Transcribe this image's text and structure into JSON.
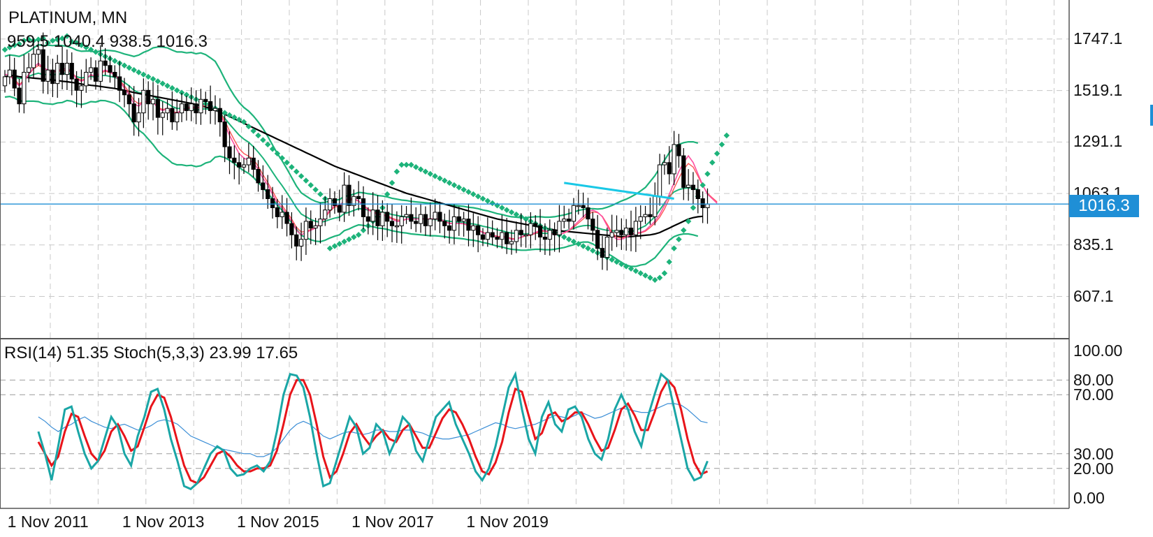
{
  "header": {
    "symbol": "PLATINUM, MN",
    "ohlc": "959.5 1040.4 938.5 1016.3",
    "indicators": "RSI(14) 51.35 Stoch(5,3,3) 23.99 17.65"
  },
  "colors": {
    "grid": "#c8c8c8",
    "bollinger": "#1db37a",
    "sar": "#1db37a",
    "ma_long": "#000000",
    "ma_fast": "#ff4fa0",
    "ma_mid": "#ff5555",
    "trend": "#19c8e6",
    "price_line": "#1f8fd6",
    "stoch_main": "#1aa6a6",
    "stoch_signal": "#e8141a",
    "rsi": "#3b8ed6"
  },
  "chart_data": {
    "type": "candlestick",
    "title": "PLATINUM, MN",
    "current_price_label": "1016.3",
    "price_axis_ticks": [
      "1747.1",
      "1519.1",
      "1291.1",
      "1063.1",
      "835.1",
      "607.1"
    ],
    "price_axis_values": [
      1747.1,
      1519.1,
      1291.1,
      1063.1,
      835.1,
      607.1
    ],
    "price_ylim": [
      420,
      1920
    ],
    "current_price": 1016.3,
    "oscillator_ticks": [
      "100.00",
      "80.00",
      "70.00",
      "30.00",
      "20.00",
      "0.00"
    ],
    "oscillator_values": [
      100,
      80,
      70,
      30,
      20,
      0
    ],
    "date_labels": [
      "1 Nov 2011",
      "1 Nov 2013",
      "1 Nov 2015",
      "1 Nov 2017",
      "1 Nov 2019"
    ],
    "date_label_months": [
      2,
      26,
      50,
      74,
      98
    ],
    "closes": [
      1580,
      1610,
      1530,
      1460,
      1600,
      1620,
      1680,
      1700,
      1560,
      1610,
      1550,
      1640,
      1590,
      1640,
      1570,
      1520,
      1540,
      1600,
      1620,
      1560,
      1650,
      1630,
      1600,
      1580,
      1520,
      1500,
      1460,
      1380,
      1420,
      1520,
      1460,
      1480,
      1400,
      1420,
      1440,
      1380,
      1420,
      1460,
      1430,
      1460,
      1420,
      1480,
      1470,
      1430,
      1440,
      1380,
      1270,
      1220,
      1200,
      1180,
      1190,
      1220,
      1170,
      1110,
      1080,
      1040,
      1000,
      960,
      980,
      930,
      880,
      830,
      860,
      940,
      910,
      920,
      950,
      990,
      1040,
      1010,
      980,
      1100,
      1010,
      1050,
      1040,
      960,
      940,
      990,
      920,
      980,
      940,
      920,
      920,
      960,
      970,
      940,
      930,
      970,
      920,
      950,
      980,
      940,
      920,
      900,
      960,
      940,
      950,
      900,
      920,
      880,
      860,
      890,
      870,
      860,
      890,
      840,
      850,
      900,
      880,
      880,
      930,
      920,
      870,
      860,
      900,
      880,
      940,
      950,
      940,
      1010,
      1010,
      1000,
      950,
      900,
      820,
      780,
      870,
      890,
      900,
      880,
      910,
      880,
      940,
      960,
      970,
      960,
      1050,
      1190,
      1200,
      1150,
      1280,
      1230,
      1090,
      1100,
      1080,
      1040,
      1000,
      1016.3
    ],
    "middle_band": [
      1580,
      1585,
      1580,
      1572,
      1575,
      1582,
      1590,
      1596,
      1590,
      1590,
      1588,
      1592,
      1592,
      1595,
      1590,
      1580,
      1575,
      1578,
      1582,
      1578,
      1585,
      1586,
      1582,
      1578,
      1568,
      1555,
      1540,
      1520,
      1510,
      1508,
      1500,
      1494,
      1482,
      1472,
      1462,
      1448,
      1440,
      1440,
      1436,
      1438,
      1432,
      1436,
      1438,
      1434,
      1436,
      1420,
      1396,
      1370,
      1346,
      1322,
      1304,
      1290,
      1270,
      1246,
      1220,
      1190,
      1158,
      1126,
      1098,
      1066,
      1034,
      1000,
      972,
      960,
      948,
      940,
      936,
      940,
      948,
      954,
      958,
      974,
      980,
      988,
      996,
      994,
      990,
      988,
      982,
      980,
      976,
      970,
      966,
      962,
      960,
      956,
      954,
      952,
      950,
      948,
      948,
      946,
      944,
      940,
      938,
      936,
      934,
      930,
      928,
      924,
      918,
      914,
      908,
      902,
      898,
      892,
      888,
      886,
      884,
      884,
      886,
      888,
      888,
      886,
      886,
      888,
      892,
      896,
      902,
      908,
      916,
      920,
      922,
      918,
      910,
      904,
      900,
      898,
      896,
      894,
      892,
      894,
      900,
      910,
      920,
      940,
      960,
      990,
      1020,
      1050,
      1070,
      1080,
      1086,
      1088,
      1086,
      1080
    ],
    "band_width": [
      90,
      92,
      94,
      98,
      104,
      110,
      118,
      126,
      128,
      130,
      130,
      128,
      126,
      120,
      118,
      118,
      118,
      116,
      112,
      110,
      110,
      112,
      114,
      116,
      120,
      126,
      136,
      150,
      166,
      180,
      196,
      214,
      230,
      240,
      246,
      250,
      250,
      250,
      250,
      250,
      250,
      250,
      240,
      230,
      212,
      192,
      174,
      160,
      150,
      144,
      140,
      138,
      136,
      134,
      130,
      126,
      120,
      114,
      110,
      106,
      100,
      96,
      94,
      92,
      90,
      88,
      86,
      84,
      82,
      80,
      78,
      76,
      74,
      72,
      72,
      72,
      72,
      72,
      72,
      72,
      72,
      72,
      72,
      72,
      72,
      72,
      72,
      72,
      72,
      72,
      72,
      72,
      72,
      72,
      72,
      72,
      72,
      72,
      72,
      72,
      72,
      72,
      72,
      72,
      72,
      72,
      72,
      72,
      72,
      72,
      72,
      72,
      72,
      72,
      72,
      72,
      72,
      72,
      72,
      72,
      72,
      72,
      74,
      78,
      84,
      92,
      102,
      112,
      124,
      136,
      146,
      154,
      160,
      164,
      170,
      176,
      182,
      186,
      190,
      194,
      198,
      200,
      202,
      204,
      206,
      206,
      206,
      204
    ],
    "sar": [
      1700,
      1710,
      1720,
      1725,
      1740,
      1745,
      1740,
      1745,
      1750,
      1730,
      1740,
      1745,
      1750,
      1760,
      1735,
      1730,
      1720,
      1710,
      1700,
      1690,
      1680,
      1670,
      1660,
      1650,
      1640,
      1630,
      1620,
      1610,
      1600,
      1590,
      1580,
      1570,
      1560,
      1550,
      1540,
      1530,
      1520,
      1510,
      1500,
      1490,
      1480,
      1470,
      1460,
      1450,
      1440,
      1430,
      1420,
      1410,
      1400,
      1390,
      1380,
      1360,
      1340,
      1320,
      1300,
      1280,
      1260,
      1240,
      1220,
      1200,
      1180,
      1160,
      1140,
      1120,
      1100,
      1080,
      1060,
      1040,
      820,
      830,
      840,
      850,
      860,
      870,
      880,
      900,
      920,
      940,
      960,
      1000,
      1060,
      1110,
      1160,
      1190,
      1190,
      1190,
      1180,
      1170,
      1160,
      1150,
      1140,
      1130,
      1120,
      1110,
      1100,
      1090,
      1080,
      1070,
      1060,
      1050,
      1040,
      1030,
      1020,
      1010,
      1000,
      990,
      980,
      970,
      960,
      950,
      940,
      930,
      920,
      910,
      900,
      890,
      880,
      870,
      860,
      850,
      840,
      830,
      820,
      810,
      800,
      790,
      780,
      770,
      760,
      750,
      740,
      730,
      720,
      710,
      700,
      690,
      680,
      690,
      710,
      760,
      820,
      860,
      900,
      940,
      1000,
      1050,
      1100,
      1150,
      1200,
      1240,
      1280,
      1320
    ],
    "ma_long": [
      1580,
      1585,
      1585,
      1580,
      1578,
      1576,
      1574,
      1572,
      1570,
      1568,
      1566,
      1564,
      1560,
      1558,
      1555,
      1552,
      1548,
      1545,
      1542,
      1540,
      1537,
      1534,
      1531,
      1528,
      1524,
      1520,
      1515,
      1510,
      1506,
      1502,
      1498,
      1494,
      1490,
      1486,
      1482,
      1478,
      1474,
      1470,
      1466,
      1462,
      1457,
      1452,
      1446,
      1440,
      1432,
      1424,
      1414,
      1404,
      1394,
      1384,
      1374,
      1364,
      1354,
      1344,
      1334,
      1324,
      1314,
      1304,
      1294,
      1284,
      1274,
      1264,
      1254,
      1244,
      1234,
      1224,
      1214,
      1204,
      1194,
      1184,
      1176,
      1168,
      1160,
      1152,
      1144,
      1136,
      1128,
      1120,
      1112,
      1104,
      1096,
      1088,
      1080,
      1072,
      1064,
      1058,
      1052,
      1046,
      1040,
      1034,
      1028,
      1022,
      1016,
      1010,
      1004,
      998,
      992,
      986,
      980,
      974,
      968,
      962,
      956,
      950,
      946,
      942,
      938,
      934,
      930,
      926,
      922,
      918,
      914,
      910,
      906,
      902,
      898,
      896,
      894,
      892,
      890,
      888,
      886,
      884,
      882,
      880,
      878,
      876,
      874,
      872,
      872,
      872,
      874,
      876,
      878,
      880,
      884,
      890,
      900,
      910,
      920,
      930,
      940,
      950,
      956,
      960,
      962
    ],
    "ma_fast": [
      1590,
      1590,
      1560,
      1540,
      1560,
      1590,
      1620,
      1640,
      1620,
      1610,
      1600,
      1610,
      1610,
      1620,
      1600,
      1570,
      1560,
      1570,
      1590,
      1580,
      1600,
      1610,
      1600,
      1590,
      1560,
      1530,
      1500,
      1460,
      1450,
      1470,
      1470,
      1470,
      1440,
      1430,
      1440,
      1420,
      1420,
      1430,
      1440,
      1450,
      1440,
      1450,
      1460,
      1450,
      1440,
      1420,
      1370,
      1320,
      1280,
      1240,
      1220,
      1210,
      1200,
      1170,
      1130,
      1100,
      1060,
      1020,
      1000,
      970,
      940,
      900,
      880,
      890,
      900,
      910,
      930,
      960,
      990,
      1010,
      1010,
      1030,
      1040,
      1040,
      1030,
      1010,
      990,
      980,
      970,
      970,
      960,
      950,
      940,
      940,
      950,
      950,
      950,
      950,
      950,
      950,
      950,
      950,
      940,
      930,
      930,
      930,
      930,
      920,
      910,
      900,
      890,
      880,
      880,
      870,
      870,
      870,
      860,
      860,
      870,
      880,
      880,
      890,
      900,
      900,
      890,
      880,
      880,
      890,
      900,
      920,
      940,
      960,
      980,
      990,
      980,
      960,
      920,
      880,
      860,
      860,
      870,
      880,
      890,
      890,
      900,
      920,
      940,
      970,
      1010,
      1060,
      1110,
      1160,
      1200,
      1230,
      1200,
      1150,
      1100,
      1060,
      1040,
      1020
    ],
    "ma_mid": [
      1590,
      1590,
      1570,
      1545,
      1565,
      1590,
      1615,
      1630,
      1620,
      1610,
      1600,
      1605,
      1605,
      1610,
      1600,
      1575,
      1565,
      1572,
      1588,
      1580,
      1595,
      1605,
      1598,
      1590,
      1565,
      1540,
      1512,
      1475,
      1460,
      1470,
      1468,
      1468,
      1445,
      1435,
      1440,
      1425,
      1422,
      1430,
      1436,
      1445,
      1438,
      1446,
      1454,
      1448,
      1440,
      1424,
      1385,
      1340,
      1300,
      1262,
      1240,
      1228,
      1214,
      1184,
      1146,
      1112,
      1074,
      1034,
      1010,
      980,
      950,
      914,
      892,
      896,
      904,
      912,
      930,
      956,
      984,
      1004,
      1006,
      1024,
      1034,
      1036,
      1030,
      1012,
      994,
      984,
      974,
      972,
      964,
      954,
      946,
      944,
      950,
      950,
      950,
      950,
      950,
      950,
      950,
      948,
      940,
      932,
      930,
      930,
      928,
      920,
      912,
      902,
      892,
      884,
      880,
      874,
      872,
      870,
      864,
      862,
      868,
      876,
      878,
      886,
      894,
      896,
      890,
      884,
      882,
      888,
      898,
      914,
      932,
      950,
      970,
      982,
      978,
      962,
      928,
      890,
      870,
      866,
      872,
      880,
      886,
      888,
      896,
      912,
      932,
      958,
      994,
      1040,
      1086,
      1130,
      1170,
      1196,
      1180,
      1140,
      1098,
      1064,
      1044,
      1026
    ],
    "stoch_main": [
      45,
      30,
      12,
      35,
      60,
      62,
      45,
      30,
      20,
      25,
      40,
      55,
      48,
      30,
      22,
      42,
      55,
      72,
      74,
      60,
      40,
      25,
      8,
      6,
      10,
      20,
      30,
      35,
      32,
      20,
      15,
      16,
      20,
      22,
      18,
      25,
      45,
      70,
      84,
      83,
      75,
      55,
      30,
      8,
      10,
      25,
      40,
      55,
      48,
      30,
      34,
      50,
      45,
      30,
      40,
      55,
      50,
      32,
      25,
      40,
      55,
      60,
      65,
      50,
      40,
      30,
      18,
      12,
      20,
      35,
      55,
      75,
      84,
      60,
      40,
      30,
      55,
      65,
      50,
      45,
      60,
      62,
      55,
      40,
      30,
      26,
      40,
      60,
      70,
      60,
      45,
      35,
      55,
      70,
      84,
      80,
      60,
      40,
      20,
      12,
      14,
      25
    ],
    "stoch_signal": [
      38,
      30,
      22,
      28,
      45,
      57,
      55,
      42,
      30,
      25,
      32,
      45,
      50,
      42,
      32,
      35,
      48,
      62,
      70,
      68,
      55,
      38,
      22,
      12,
      10,
      14,
      22,
      30,
      32,
      28,
      22,
      18,
      18,
      20,
      20,
      22,
      32,
      50,
      70,
      80,
      80,
      70,
      50,
      28,
      14,
      18,
      30,
      44,
      50,
      42,
      36,
      42,
      46,
      40,
      38,
      46,
      50,
      42,
      34,
      34,
      44,
      54,
      60,
      58,
      50,
      40,
      28,
      18,
      16,
      24,
      38,
      58,
      74,
      72,
      56,
      40,
      44,
      56,
      58,
      52,
      54,
      58,
      58,
      50,
      40,
      32,
      34,
      46,
      60,
      64,
      56,
      46,
      46,
      58,
      72,
      80,
      75,
      60,
      40,
      24,
      16,
      18
    ],
    "rsi": [
      55,
      52,
      48,
      45,
      48,
      50,
      53,
      55,
      52,
      50,
      48,
      47,
      49,
      50,
      48,
      46,
      47,
      49,
      52,
      53,
      52,
      50,
      46,
      42,
      40,
      38,
      36,
      34,
      33,
      32,
      31,
      30,
      30,
      28,
      28,
      30,
      34,
      40,
      46,
      50,
      52,
      50,
      46,
      42,
      40,
      42,
      44,
      45,
      44,
      43,
      44,
      46,
      46,
      45,
      45,
      46,
      46,
      45,
      44,
      42,
      41,
      40,
      40,
      41,
      42,
      43,
      45,
      47,
      49,
      51,
      50,
      48,
      47,
      48,
      49,
      50,
      52,
      54,
      56,
      55,
      54,
      56,
      58,
      56,
      54,
      55,
      57,
      59,
      61,
      60,
      59,
      58,
      58,
      60,
      62,
      64,
      64,
      63,
      60,
      56,
      52,
      51
    ]
  }
}
